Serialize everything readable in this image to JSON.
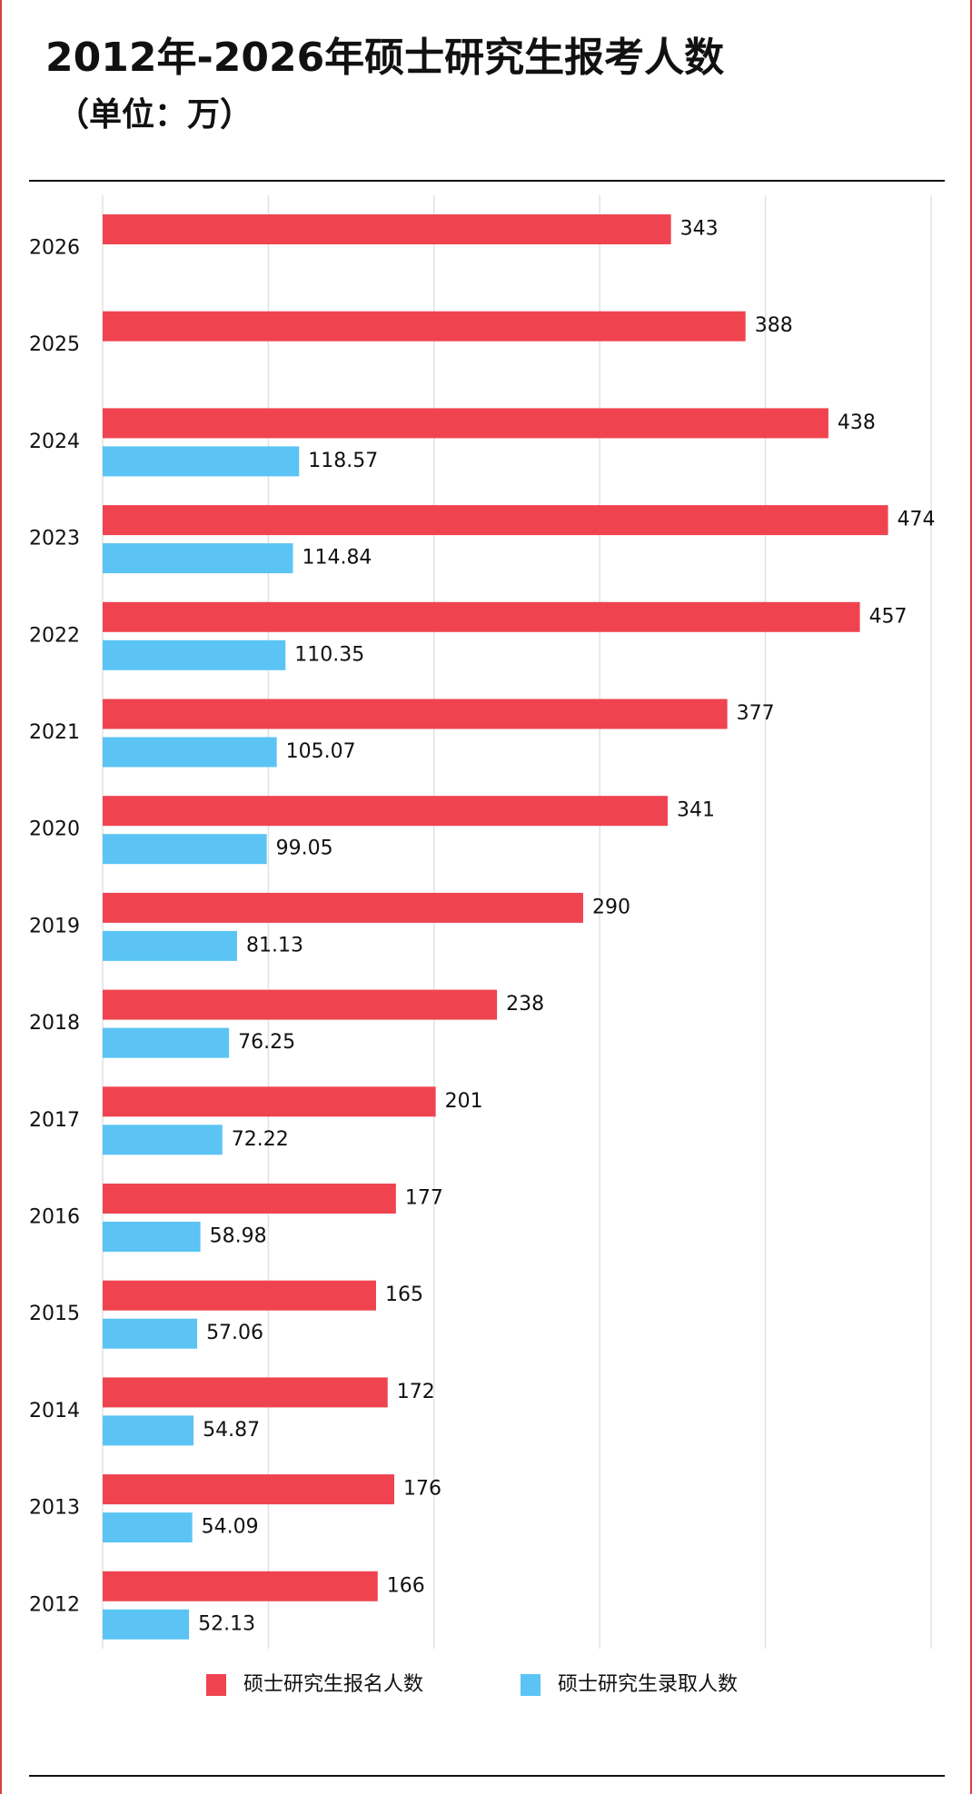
{
  "chart_data": {
    "type": "bar",
    "orientation": "horizontal",
    "title": "2012年-2026年硕士研究生报考人数",
    "subtitle": "（单位：万）",
    "categories": [
      "2026",
      "2025",
      "2024",
      "2023",
      "2022",
      "2021",
      "2020",
      "2019",
      "2018",
      "2017",
      "2016",
      "2015",
      "2014",
      "2013",
      "2012"
    ],
    "series": [
      {
        "name": "硕士研究生报名人数",
        "color": "#ef4450",
        "values": [
          343,
          388,
          438,
          474,
          457,
          377,
          341,
          290,
          238,
          201,
          177,
          165,
          172,
          176,
          166
        ]
      },
      {
        "name": "硕士研究生录取人数",
        "color": "#5bc4f5",
        "values": [
          null,
          null,
          118.57,
          114.84,
          110.35,
          105.07,
          99.05,
          81.13,
          76.25,
          72.22,
          58.98,
          57.06,
          54.87,
          54.09,
          52.13
        ]
      }
    ],
    "xlim": [
      0,
      500
    ],
    "xticks": [
      0,
      100,
      200,
      300,
      400,
      500
    ],
    "grid": true
  }
}
